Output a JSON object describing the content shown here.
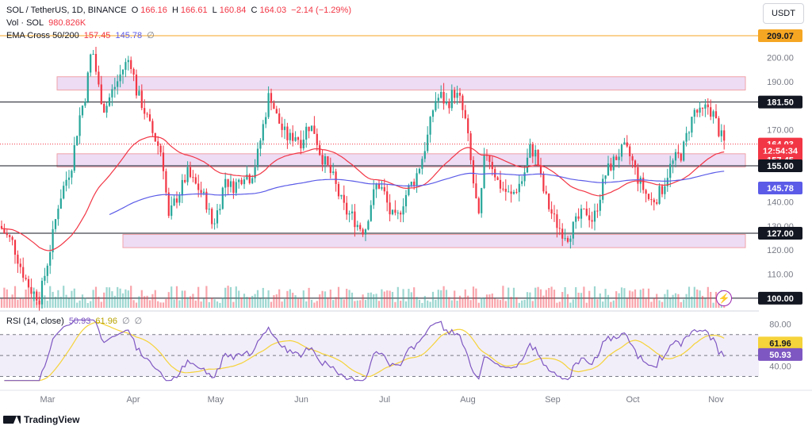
{
  "header": {
    "symbol": "SOL / TetherUS, 1D, BINANCE",
    "ohlc": [
      {
        "label": "O",
        "value": "166.16"
      },
      {
        "label": "H",
        "value": "166.61"
      },
      {
        "label": "L",
        "value": "160.84"
      },
      {
        "label": "C",
        "value": "164.03"
      },
      {
        "label": "",
        "value": "−2.14 (−1.29%)"
      }
    ],
    "vol_label": "Vol · SOL",
    "vol_value": "980.826K",
    "ema_label": "EMA Cross 50/200",
    "ema_fast": "157.45",
    "ema_slow": "145.78",
    "ema_zero": "∅",
    "rsi_label": "RSI (14, close)",
    "rsi_value": "50.93",
    "rsi_ma": "61.96",
    "rsi_zero1": "∅",
    "rsi_zero2": "∅",
    "currency": "USDT",
    "brand": "TradingView"
  },
  "colors": {
    "up": "#26a69a",
    "down": "#f23645",
    "ema_fast": "#f23645",
    "ema_slow": "#5b5be8",
    "zone_fill": "#ead6f2",
    "zone_stroke": "#f0a2a8",
    "rsi_line": "#7e57c2",
    "rsi_ma": "#f5d33a",
    "rsi_band": "#ede7f6",
    "level_line": "#131722",
    "top_line": "#f5a623"
  },
  "chart_data": {
    "type": "candlestick",
    "symbol": "SOL/USDT",
    "timeframe": "1D",
    "price_axis": {
      "ticks": [
        "200.00",
        "190.00",
        "170.00",
        "140.00",
        "130.00",
        "120.00",
        "110.00"
      ],
      "range": [
        96,
        214
      ]
    },
    "x_labels": [
      "Mar",
      "Apr",
      "May",
      "Jun",
      "Jul",
      "Aug",
      "Sep",
      "Oct",
      "Nov"
    ],
    "price_labels": [
      {
        "value": 209.07,
        "text": "209.07",
        "style": "level-orange"
      },
      {
        "value": 181.5,
        "text": "181.50",
        "style": "level-dark"
      },
      {
        "value": 164.03,
        "text": "164.03",
        "style": "last-price"
      },
      {
        "value": 161.3,
        "text": "12:54:34",
        "style": "last-price"
      },
      {
        "value": 157.45,
        "text": "157.45",
        "style": "ema-fast"
      },
      {
        "value": 155.0,
        "text": "155.00",
        "style": "level-dark"
      },
      {
        "value": 145.78,
        "text": "145.78",
        "style": "ema-slow"
      },
      {
        "value": 127.0,
        "text": "127.00",
        "style": "level-dark"
      },
      {
        "value": 100.0,
        "text": "100.00",
        "style": "level-dark"
      }
    ],
    "horizontal_levels": [
      209.07,
      181.5,
      155.0,
      127.0,
      100.0
    ],
    "zones": [
      {
        "from": 186.5,
        "to": 192.0
      },
      {
        "from": 154.5,
        "to": 160.0
      },
      {
        "from": 121.0,
        "to": 126.5
      }
    ],
    "last_price": 164.03,
    "ema50_last": 157.45,
    "ema200_last": 145.78,
    "rsi": {
      "ticks": [
        "80.00",
        "40.00"
      ],
      "range": [
        22,
        88
      ],
      "band": [
        30,
        70
      ],
      "mid": 50,
      "last": 50.93,
      "ma_last": 61.96,
      "labels": [
        {
          "value": 61.96,
          "text": "61.96",
          "style": "rsi-ma"
        },
        {
          "value": 50.93,
          "text": "50.93",
          "style": "rsi"
        }
      ]
    }
  }
}
